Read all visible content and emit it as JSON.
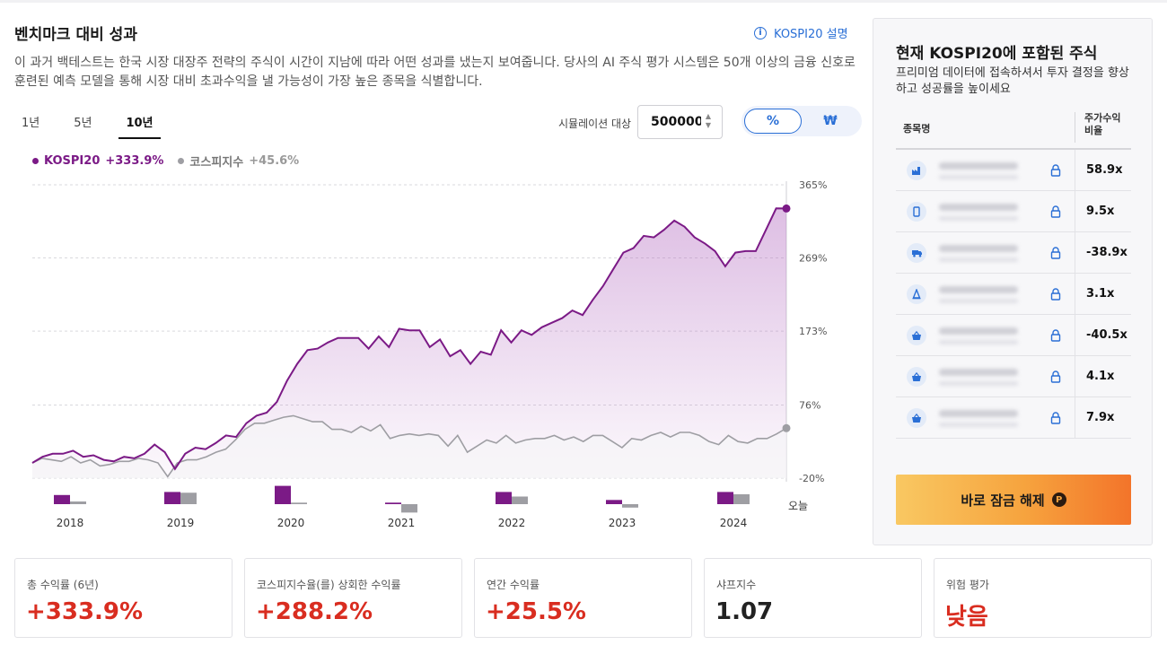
{
  "header": {
    "title": "벤치마크 대비 성과",
    "explain_link": "KOSPI20 설명",
    "description": "이 과거 백테스트는 한국 시장 대장주 전략의 주식이 시간이 지남에 따라 어떤 성과를 냈는지 보여줍니다. 당사의 AI 주식 평가 시스템은 50개 이상의 금융 신호로 훈련된 예측 모델을 통해 시장 대비 초과수익을 낼 가능성이 가장 높은 종목을 식별합니다."
  },
  "controls": {
    "periods": [
      "1년",
      "5년",
      "10년"
    ],
    "active_period": "10년",
    "sim_label": "시뮬레이션 대상",
    "sim_value": "500000",
    "toggle": [
      "%",
      "₩"
    ],
    "toggle_active": "%"
  },
  "legend": {
    "series1_name": "KOSPI20",
    "series1_value": "+333.9%",
    "series2_name": "코스피지수",
    "series2_value": "+45.6%"
  },
  "colors": {
    "kospi20": "#7b1a86",
    "index": "#9e9ea3",
    "accent": "#2a6fd6",
    "positive": "#d92d20"
  },
  "chart_data": {
    "type": "line",
    "y_ticks": [
      "365%",
      "269%",
      "173%",
      "76%",
      "-20%"
    ],
    "y_tick_values": [
      365,
      269,
      173,
      76,
      -20
    ],
    "ylim": [
      -20,
      365
    ],
    "x_labels": [
      "2018",
      "2019",
      "2020",
      "2021",
      "2022",
      "2023",
      "2024",
      "오늘"
    ],
    "series": [
      {
        "name": "KOSPI20",
        "values": [
          0,
          8,
          12,
          12,
          16,
          8,
          10,
          4,
          2,
          8,
          6,
          12,
          24,
          14,
          -8,
          12,
          20,
          18,
          26,
          36,
          34,
          52,
          62,
          66,
          80,
          108,
          130,
          148,
          150,
          158,
          164,
          164,
          164,
          150,
          166,
          152,
          176,
          174,
          174,
          152,
          162,
          140,
          148,
          130,
          146,
          142,
          174,
          158,
          174,
          168,
          178,
          184,
          190,
          200,
          194,
          214,
          232,
          254,
          276,
          282,
          298,
          296,
          306,
          318,
          310,
          296,
          288,
          278,
          258,
          276,
          278,
          278,
          306,
          334,
          333.9
        ]
      },
      {
        "name": "코스피지수",
        "values": [
          0,
          6,
          4,
          2,
          8,
          0,
          4,
          -4,
          -2,
          2,
          2,
          6,
          4,
          0,
          -18,
          0,
          4,
          4,
          8,
          14,
          18,
          30,
          44,
          52,
          52,
          56,
          60,
          62,
          58,
          54,
          54,
          44,
          44,
          40,
          48,
          42,
          50,
          32,
          36,
          38,
          36,
          38,
          36,
          22,
          36,
          14,
          22,
          30,
          26,
          36,
          26,
          30,
          32,
          32,
          36,
          30,
          34,
          28,
          36,
          36,
          28,
          20,
          32,
          30,
          36,
          40,
          34,
          40,
          40,
          36,
          28,
          24,
          36,
          28,
          26,
          32,
          32,
          38,
          45.6
        ]
      }
    ],
    "bar_groups": [
      {
        "label": "2018",
        "kospi20": 12,
        "index": 3.5
      },
      {
        "label": "2019",
        "kospi20": 16,
        "index": 15
      },
      {
        "label": "2020",
        "kospi20": 24,
        "index": 2
      },
      {
        "label": "2021",
        "kospi20": 2,
        "index": -11
      },
      {
        "label": "2022",
        "kospi20": 16,
        "index": 10
      },
      {
        "label": "2023",
        "kospi20": 5.5,
        "index": -4.5
      },
      {
        "label": "2024",
        "kospi20": 16,
        "index": 13
      }
    ]
  },
  "side_panel": {
    "title": "현재 KOSPI20에 포함된 주식",
    "subtitle": "프리미엄 데이터에 접속하셔서 투자 결정을 향상하고 성공률을 높이세요",
    "col_name": "종목명",
    "col_ratio": "주가수익비율",
    "rows": [
      {
        "icon": "factory-icon",
        "ratio": "58.9x"
      },
      {
        "icon": "phone-icon",
        "ratio": "9.5x"
      },
      {
        "icon": "truck-icon",
        "ratio": "-38.9x"
      },
      {
        "icon": "cone-icon",
        "ratio": "3.1x"
      },
      {
        "icon": "basket-icon",
        "ratio": "-40.5x"
      },
      {
        "icon": "basket-icon",
        "ratio": "4.1x"
      },
      {
        "icon": "basket-icon",
        "ratio": "7.9x"
      }
    ],
    "unlock_label": "바로 잠금 해제"
  },
  "stats": [
    {
      "label": "총 수익률 (6년)",
      "value": "+333.9%"
    },
    {
      "label": "코스피지수율(를) 상회한 수익률",
      "value": "+288.2%"
    },
    {
      "label": "연간 수익률",
      "value": "+25.5%"
    },
    {
      "label": "샤프지수",
      "value": "1.07"
    },
    {
      "label": "위험 평가",
      "value": "낮음"
    }
  ]
}
